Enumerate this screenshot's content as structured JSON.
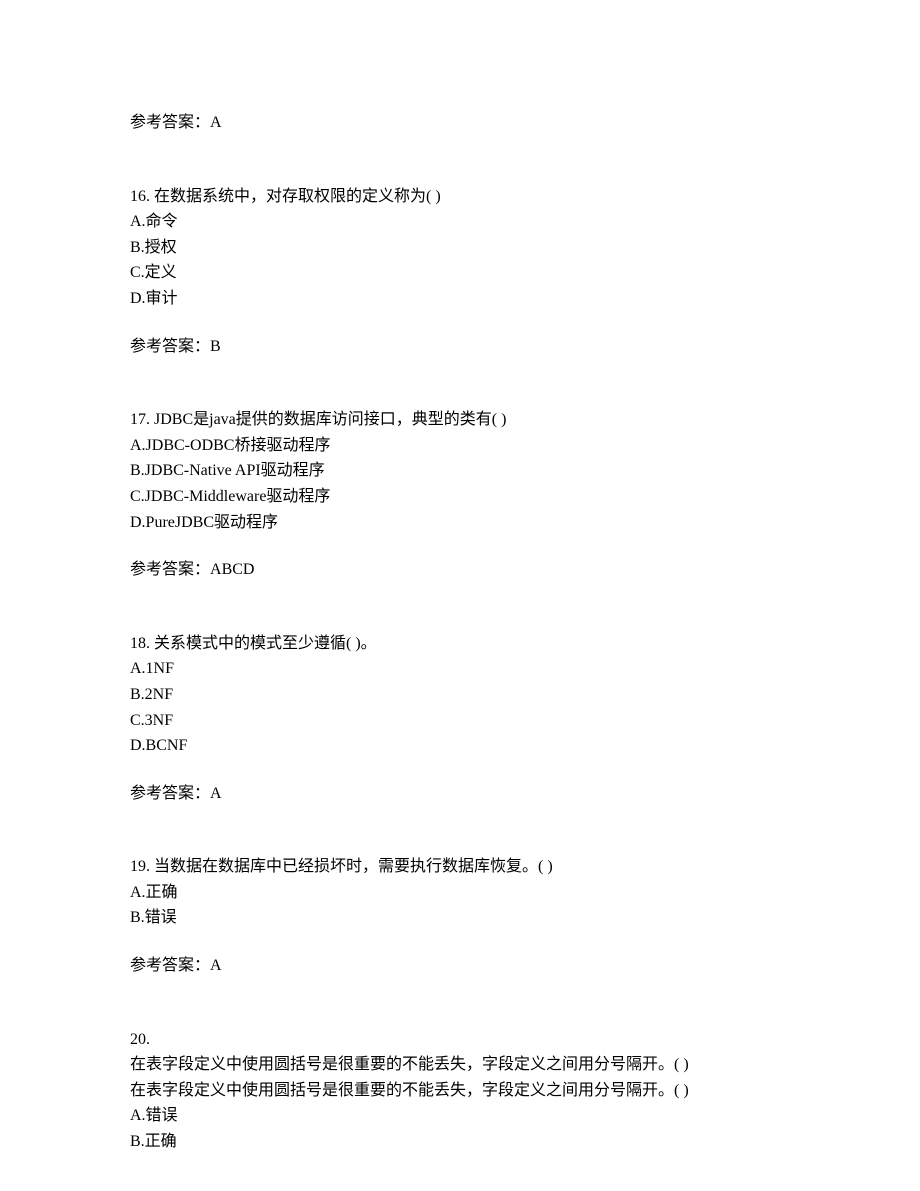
{
  "topAnswer": {
    "label": "参考答案：",
    "value": "A"
  },
  "questions": [
    {
      "number": "16.",
      "text": "在数据系统中，对存取权限的定义称为(  )",
      "options": [
        "A.命令",
        "B.授权",
        "C.定义",
        "D.审计"
      ],
      "answerLabel": "参考答案：",
      "answerValue": "B"
    },
    {
      "number": "17.",
      "text": "JDBC是java提供的数据库访问接口，典型的类有(  )",
      "options": [
        "A.JDBC-ODBC桥接驱动程序",
        "B.JDBC-Native API驱动程序",
        "C.JDBC-Middleware驱动程序",
        "D.PureJDBC驱动程序"
      ],
      "answerLabel": "参考答案：",
      "answerValue": "ABCD"
    },
    {
      "number": "18.",
      "text": "关系模式中的模式至少遵循(  )。",
      "options": [
        "A.1NF",
        "B.2NF",
        "C.3NF",
        "D.BCNF"
      ],
      "answerLabel": "参考答案：",
      "answerValue": "A"
    },
    {
      "number": "19.",
      "text": "当数据在数据库中已经损坏时，需要执行数据库恢复。(  )",
      "options": [
        "A.正确",
        "B.错误"
      ],
      "answerLabel": "参考答案：",
      "answerValue": "A"
    },
    {
      "number": "20.",
      "text": "",
      "extraLines": [
        "在表字段定义中使用圆括号是很重要的不能丢失，字段定义之间用分号隔开。(  )",
        "在表字段定义中使用圆括号是很重要的不能丢失，字段定义之间用分号隔开。(  )"
      ],
      "options": [
        "A.错误",
        "B.正确"
      ],
      "answerLabel": "",
      "answerValue": ""
    }
  ]
}
